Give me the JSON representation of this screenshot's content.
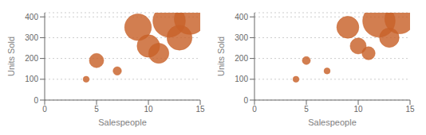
{
  "chart_data": [
    {
      "type": "scatter",
      "x": [
        4,
        5,
        7,
        9,
        10,
        11,
        12,
        13,
        14
      ],
      "values": [
        100,
        190,
        140,
        350,
        260,
        225,
        380,
        300,
        390
      ],
      "sizes": [
        100,
        200,
        120,
        500,
        380,
        320,
        700,
        450,
        650
      ],
      "color": "#c8622a",
      "xlim": [
        0,
        15
      ],
      "ylim": [
        0,
        420
      ],
      "xticks": [
        0,
        5,
        10,
        15
      ],
      "yticks": [
        0,
        100,
        200,
        300,
        400
      ],
      "xlabel": "Salespeople",
      "ylabel": "Units Sold",
      "grid": true
    },
    {
      "type": "scatter",
      "x": [
        4,
        5,
        7,
        9,
        10,
        11,
        12,
        13,
        14
      ],
      "values": [
        100,
        190,
        140,
        350,
        260,
        225,
        380,
        300,
        390
      ],
      "sizes": [
        100,
        200,
        120,
        500,
        380,
        320,
        700,
        450,
        650
      ],
      "color": "#c8622a",
      "xlim": [
        0,
        15
      ],
      "ylim": [
        0,
        420
      ],
      "xticks": [
        0,
        5,
        10,
        15
      ],
      "yticks": [
        0,
        100,
        200,
        300,
        400
      ],
      "xlabel": "Salespeople",
      "ylabel": "Units Sold",
      "grid": true
    }
  ]
}
